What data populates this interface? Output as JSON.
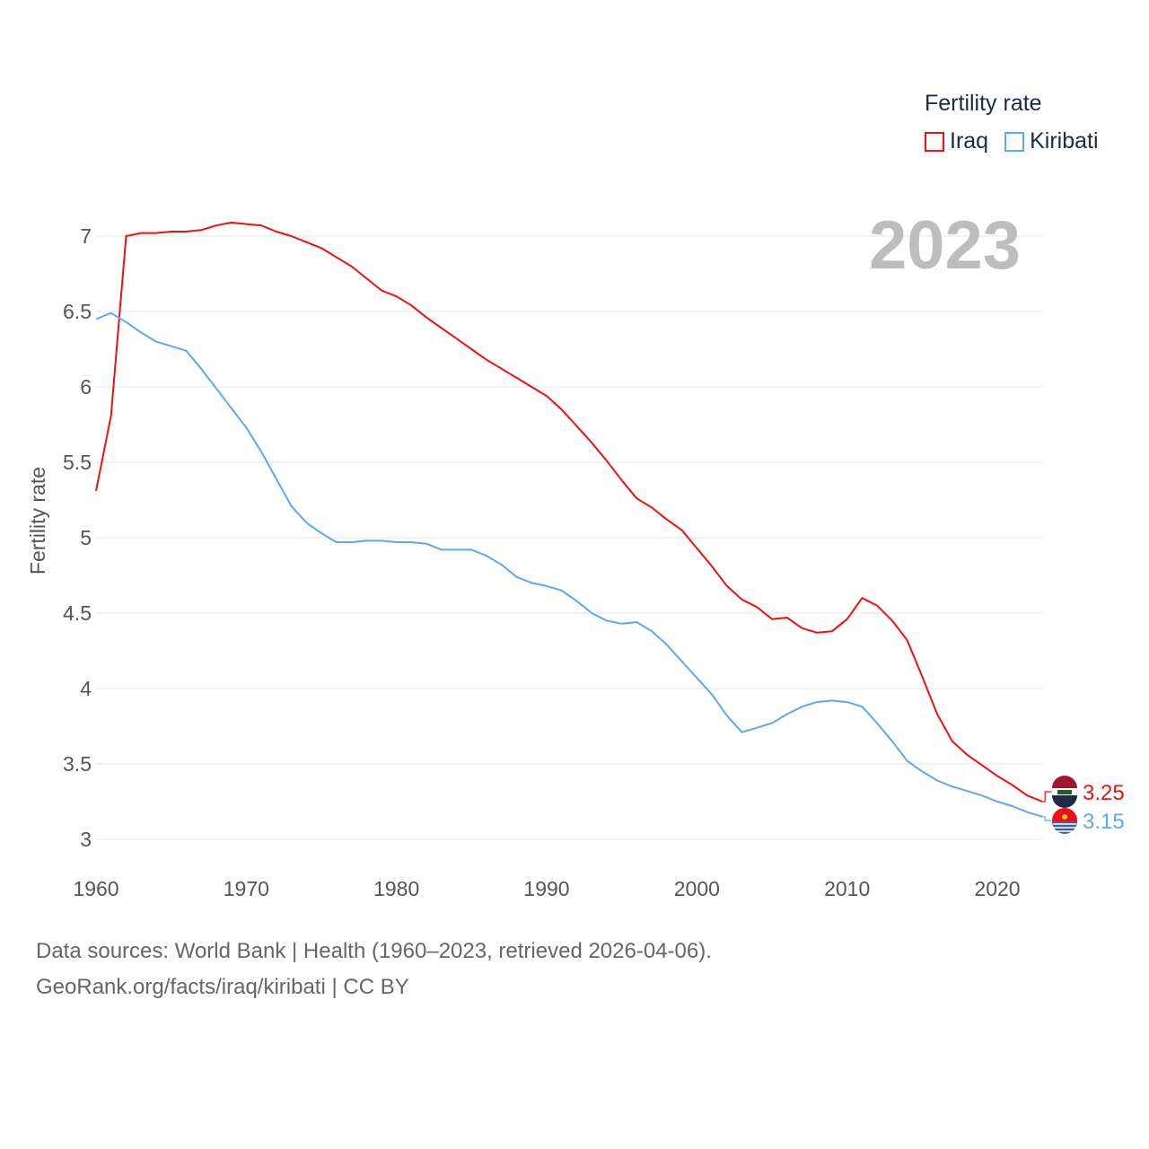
{
  "chart_data": {
    "type": "line",
    "title": "",
    "ylabel": "Fertility rate",
    "xlabel": "",
    "ylim": [
      3,
      7
    ],
    "xlim": [
      1960,
      2023
    ],
    "yticks": [
      3,
      3.5,
      4,
      4.5,
      5,
      5.5,
      6,
      6.5,
      7
    ],
    "ytick_labels": [
      "3",
      "3.5",
      "4",
      "4.5",
      "5",
      "5.5",
      "6",
      "6.5",
      "7"
    ],
    "xticks": [
      1960,
      1970,
      1980,
      1990,
      2000,
      2010,
      2020
    ],
    "xtick_labels": [
      "1960",
      "1970",
      "1980",
      "1990",
      "2000",
      "2010",
      "2020"
    ],
    "grid": true,
    "legend_title": "Fertility rate",
    "legend_position": "top-right",
    "current_year": "2023",
    "x": [
      1960,
      1961,
      1962,
      1963,
      1964,
      1965,
      1966,
      1967,
      1968,
      1969,
      1970,
      1971,
      1972,
      1973,
      1974,
      1975,
      1976,
      1977,
      1978,
      1979,
      1980,
      1981,
      1982,
      1983,
      1984,
      1985,
      1986,
      1987,
      1988,
      1989,
      1990,
      1991,
      1992,
      1993,
      1994,
      1995,
      1996,
      1997,
      1998,
      1999,
      2000,
      2001,
      2002,
      2003,
      2004,
      2005,
      2006,
      2007,
      2008,
      2009,
      2010,
      2011,
      2012,
      2013,
      2014,
      2015,
      2016,
      2017,
      2018,
      2019,
      2020,
      2021,
      2022,
      2023
    ],
    "series": [
      {
        "name": "Iraq",
        "color": "#ee1111",
        "end_label": "3.25",
        "values": [
          5.31,
          5.81,
          7.0,
          7.02,
          7.02,
          7.03,
          7.03,
          7.04,
          7.07,
          7.09,
          7.08,
          7.07,
          7.03,
          7.0,
          6.96,
          6.92,
          6.86,
          6.8,
          6.72,
          6.64,
          6.6,
          6.54,
          6.46,
          6.39,
          6.32,
          6.25,
          6.18,
          6.12,
          6.06,
          6.0,
          5.94,
          5.85,
          5.74,
          5.63,
          5.51,
          5.38,
          5.26,
          5.2,
          5.12,
          5.05,
          4.93,
          4.81,
          4.68,
          4.59,
          4.54,
          4.46,
          4.47,
          4.4,
          4.37,
          4.38,
          4.46,
          4.6,
          4.55,
          4.45,
          4.32,
          4.08,
          3.83,
          3.65,
          3.56,
          3.49,
          3.42,
          3.36,
          3.29,
          3.25
        ]
      },
      {
        "name": "Kiribati",
        "color": "#5ea8f0",
        "end_label": "3.15",
        "values": [
          6.45,
          6.49,
          6.43,
          6.36,
          6.3,
          6.27,
          6.24,
          6.12,
          5.99,
          5.86,
          5.73,
          5.57,
          5.39,
          5.21,
          5.1,
          5.03,
          4.97,
          4.97,
          4.98,
          4.98,
          4.97,
          4.97,
          4.96,
          4.92,
          4.92,
          4.92,
          4.88,
          4.82,
          4.74,
          4.7,
          4.68,
          4.65,
          4.58,
          4.5,
          4.45,
          4.43,
          4.44,
          4.38,
          4.29,
          4.18,
          4.07,
          3.96,
          3.82,
          3.71,
          3.74,
          3.77,
          3.83,
          3.88,
          3.91,
          3.92,
          3.91,
          3.88,
          3.77,
          3.65,
          3.52,
          3.45,
          3.39,
          3.35,
          3.32,
          3.29,
          3.25,
          3.22,
          3.18,
          3.15
        ]
      }
    ]
  },
  "footer": {
    "line1": "Data sources: World Bank | Health (1960–2023, retrieved 2026-04-06).",
    "line2": "GeoRank.org/facts/iraq/kiribati | CC BY"
  }
}
